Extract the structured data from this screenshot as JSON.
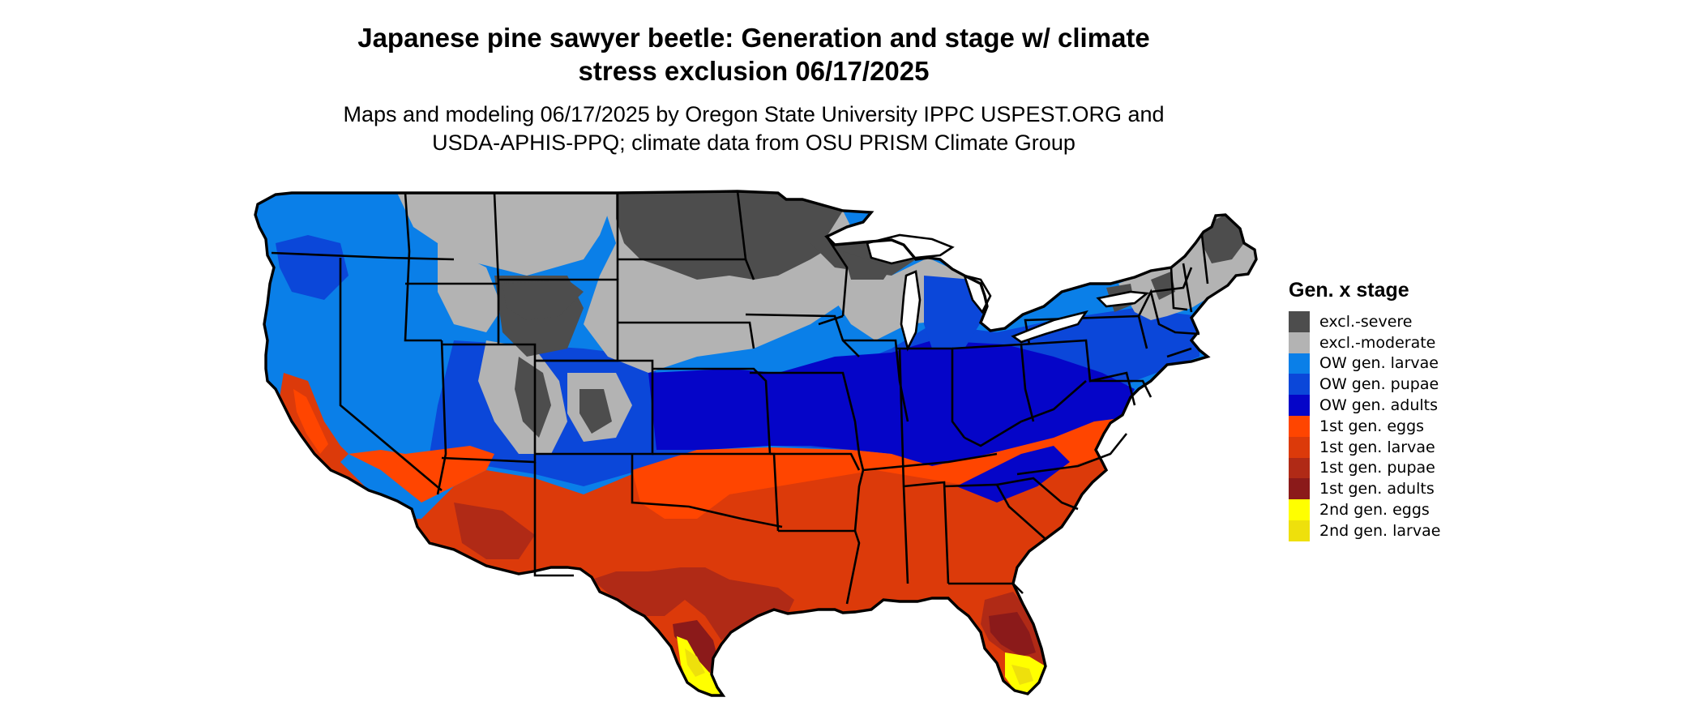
{
  "title_line1": "Japanese pine sawyer beetle: Generation and stage w/ climate",
  "title_line2": "stress exclusion 06/17/2025",
  "subtitle_line1": "Maps and modeling 06/17/2025 by Oregon State University IPPC USPEST.ORG and",
  "subtitle_line2": "USDA-APHIS-PPQ; climate data from OSU PRISM Climate Group",
  "legend": {
    "title": "Gen. x stage",
    "items": [
      {
        "label": "excl.-severe",
        "color": "#4d4d4d"
      },
      {
        "label": "excl.-moderate",
        "color": "#b3b3b3"
      },
      {
        "label": "OW gen. larvae",
        "color": "#0a7fe8"
      },
      {
        "label": "OW gen. pupae",
        "color": "#0b47d9"
      },
      {
        "label": "OW gen. adults",
        "color": "#0505c8"
      },
      {
        "label": "1st gen. eggs",
        "color": "#ff4500"
      },
      {
        "label": "1st gen. larvae",
        "color": "#dc3a0a"
      },
      {
        "label": "1st gen. pupae",
        "color": "#b02a16"
      },
      {
        "label": "1st gen. adults",
        "color": "#8b1a1a"
      },
      {
        "label": "2nd gen. eggs",
        "color": "#ffff00"
      },
      {
        "label": "2nd gen. larvae",
        "color": "#eee00c"
      }
    ]
  }
}
